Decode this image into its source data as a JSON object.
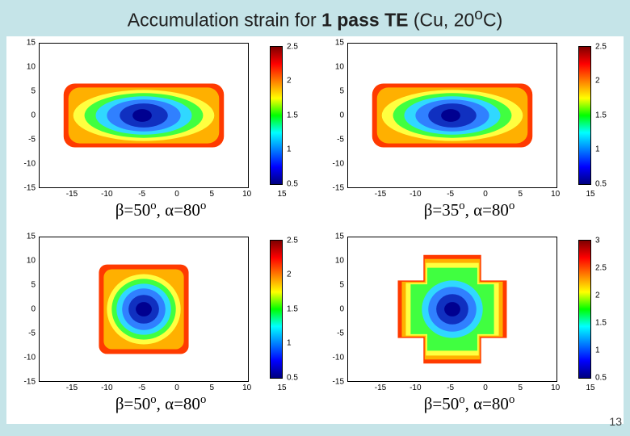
{
  "title_plain_before": "Accumulation strain for ",
  "title_bold": "1 pass TE",
  "title_plain_after": " (Cu, 20",
  "title_sup": "o",
  "title_plain_end": "C)",
  "slide_number": "13",
  "yticks": [
    "15",
    "10",
    "5",
    "0",
    "-5",
    "-10",
    "-15"
  ],
  "xticks": [
    "-15",
    "-10",
    "-5",
    "0",
    "5",
    "10",
    "15"
  ],
  "jet": {
    "stops": [
      {
        "o": "0%",
        "c": "#7f0000"
      },
      {
        "o": "12.5%",
        "c": "#ff0000"
      },
      {
        "o": "25%",
        "c": "#ff7f00"
      },
      {
        "o": "37.5%",
        "c": "#ffff00"
      },
      {
        "o": "50%",
        "c": "#00ff00"
      },
      {
        "o": "62.5%",
        "c": "#00ffff"
      },
      {
        "o": "75%",
        "c": "#007fff"
      },
      {
        "o": "87.5%",
        "c": "#0000ff"
      },
      {
        "o": "100%",
        "c": "#00007f"
      }
    ]
  },
  "contour_colors": {
    "outer": "#ff3a00",
    "band2": "#ffb000",
    "band3": "#ffff40",
    "band4": "#40ff40",
    "band5": "#30d8ff",
    "band6": "#3080ff",
    "core": "#1030c0",
    "innermost": "#000090"
  },
  "panels": [
    {
      "id": "p1",
      "caption_beta": "50",
      "caption_alpha": "80",
      "cb_ticks": [
        {
          "pos": 0,
          "label": "2.5"
        },
        {
          "pos": 0.25,
          "label": "2"
        },
        {
          "pos": 0.5,
          "label": "1.5"
        },
        {
          "pos": 0.75,
          "label": "1"
        },
        {
          "pos": 1.0,
          "label": "0.5"
        }
      ],
      "shape": "wide"
    },
    {
      "id": "p2",
      "caption_beta": "35",
      "caption_alpha": "80",
      "cb_ticks": [
        {
          "pos": 0,
          "label": "2.5"
        },
        {
          "pos": 0.25,
          "label": "2"
        },
        {
          "pos": 0.5,
          "label": "1.5"
        },
        {
          "pos": 0.75,
          "label": "1"
        },
        {
          "pos": 1.0,
          "label": "0.5"
        }
      ],
      "shape": "wide"
    },
    {
      "id": "p3",
      "caption_beta": "50",
      "caption_alpha": "80",
      "cb_ticks": [
        {
          "pos": 0,
          "label": "2.5"
        },
        {
          "pos": 0.25,
          "label": "2"
        },
        {
          "pos": 0.5,
          "label": "1.5"
        },
        {
          "pos": 0.75,
          "label": "1"
        },
        {
          "pos": 1.0,
          "label": "0.5"
        }
      ],
      "shape": "square"
    },
    {
      "id": "p4",
      "caption_beta": "50",
      "caption_alpha": "80",
      "cb_ticks": [
        {
          "pos": 0,
          "label": "3"
        },
        {
          "pos": 0.2,
          "label": "2.5"
        },
        {
          "pos": 0.4,
          "label": "2"
        },
        {
          "pos": 0.6,
          "label": "1.5"
        },
        {
          "pos": 0.8,
          "label": "1"
        },
        {
          "pos": 1.0,
          "label": "0.5"
        }
      ],
      "shape": "cross"
    }
  ],
  "plot_bg": "#ffffff",
  "axis_color": "#000000"
}
